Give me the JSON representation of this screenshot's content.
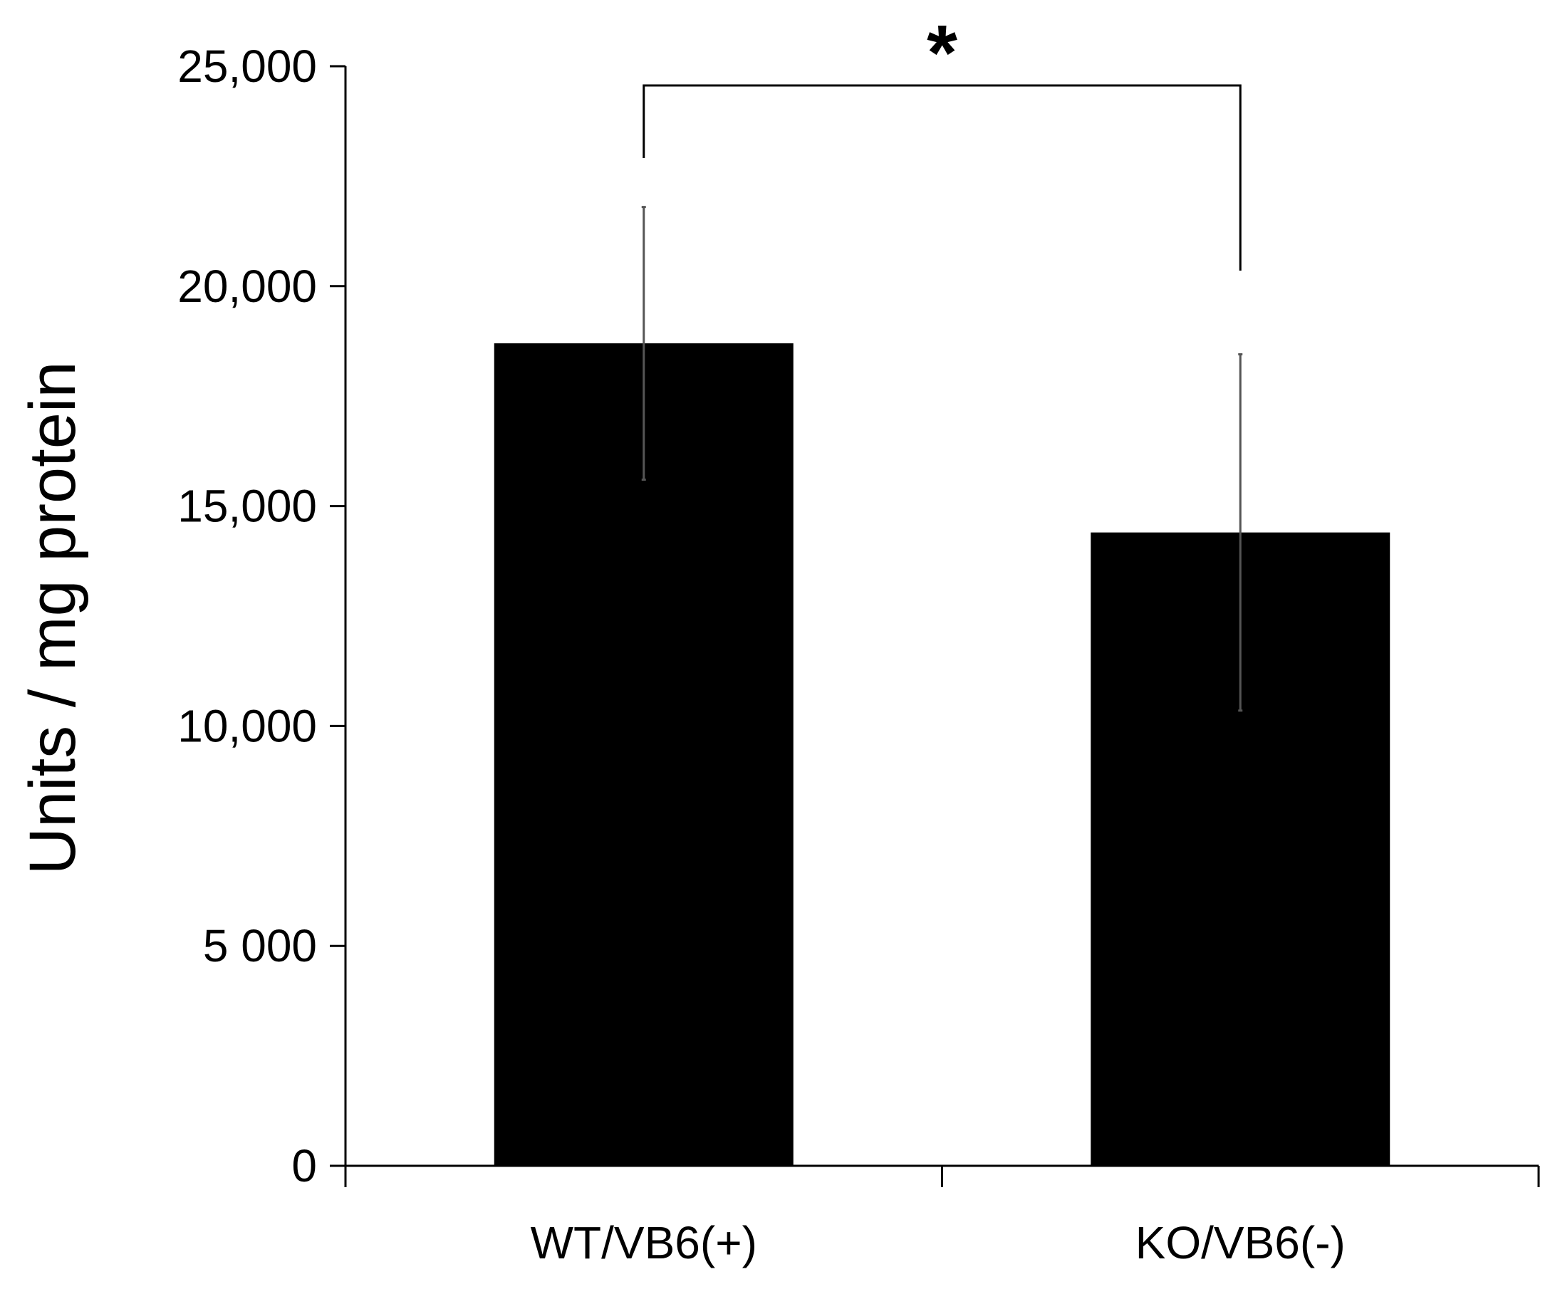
{
  "chart_data": {
    "type": "bar",
    "categories": [
      "WT/VB6(+)",
      "KO/VB6(-)"
    ],
    "values": [
      18700,
      14400
    ],
    "error": [
      3100,
      4050
    ],
    "ylabel": "Units / mg protein",
    "xlabel": "",
    "ylim": [
      0,
      25000
    ],
    "yticks": [
      0,
      5000,
      10000,
      15000,
      20000,
      25000
    ],
    "ytick_labels": [
      "0",
      "5 000",
      "10,000",
      "15,000",
      "20,000",
      "25,000"
    ],
    "grid": false,
    "significance": {
      "between": [
        0,
        1
      ],
      "label": "*"
    },
    "colors": {
      "bar": "#000000",
      "error_bar": "#555555",
      "axis": "#000000"
    }
  }
}
